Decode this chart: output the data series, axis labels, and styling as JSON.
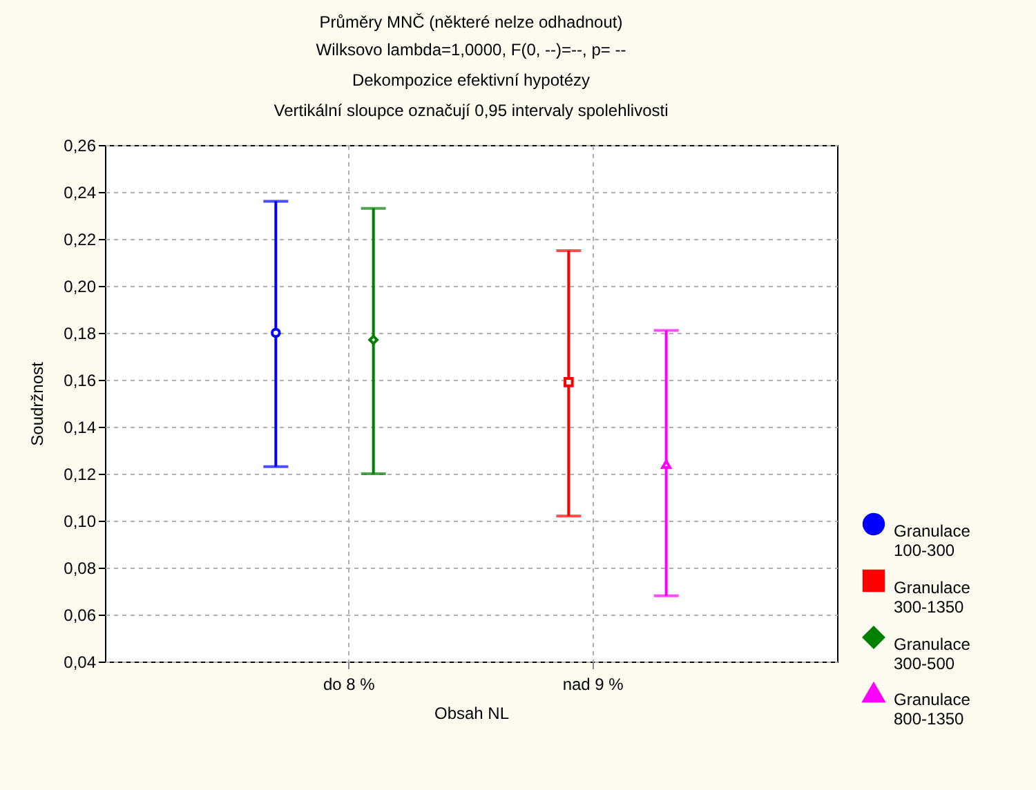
{
  "chart_data": {
    "type": "scatter",
    "title": "Průměry MNČ (některé nelze odhadnout)",
    "subtitle": "Wilksovo lambda=1,0000, F(0, --)=--, p=  --\nDekompozice efektivní hypotézy\nVertikální sloupce označují 0,95 intervaly spolehlivosti",
    "xlabel": "Obsah NL",
    "ylabel": "Soudržnost",
    "categories": [
      "do 8 %",
      "nad 9 %"
    ],
    "series": [
      {
        "name": "Granulace 100-300",
        "color": "#0000ff",
        "marker": "circle",
        "values": [
          0.18,
          null
        ],
        "errors": [
          [
            0.123,
            0.236
          ],
          null
        ]
      },
      {
        "name": "Granulace 300-1350",
        "color": "#ff0000",
        "marker": "square",
        "values": [
          null,
          0.159
        ],
        "errors": [
          null,
          [
            0.102,
            0.215
          ]
        ]
      },
      {
        "name": "Granulace 300-500",
        "color": "#008000",
        "marker": "diamond",
        "values": [
          0.177,
          null
        ],
        "errors": [
          [
            0.12,
            0.233
          ],
          null
        ]
      },
      {
        "name": "Granulace 800-1350",
        "color": "#ff00ff",
        "marker": "triangle",
        "values": [
          null,
          0.124
        ],
        "errors": [
          null,
          [
            0.068,
            0.181
          ]
        ]
      }
    ],
    "ylim": [
      0.04,
      0.26
    ],
    "yticks": [
      {
        "value": 0.04,
        "label": "0,04"
      },
      {
        "value": 0.06,
        "label": "0,06"
      },
      {
        "value": 0.08,
        "label": "0,08"
      },
      {
        "value": 0.1,
        "label": "0,10"
      },
      {
        "value": 0.12,
        "label": "0,12"
      },
      {
        "value": 0.14,
        "label": "0,14"
      },
      {
        "value": 0.16,
        "label": "0,16"
      },
      {
        "value": 0.18,
        "label": "0,18"
      },
      {
        "value": 0.2,
        "label": "0,20"
      },
      {
        "value": 0.22,
        "label": "0,22"
      },
      {
        "value": 0.24,
        "label": "0,24"
      },
      {
        "value": 0.26,
        "label": "0,26"
      }
    ],
    "grid": true,
    "legend": "bottom right"
  }
}
